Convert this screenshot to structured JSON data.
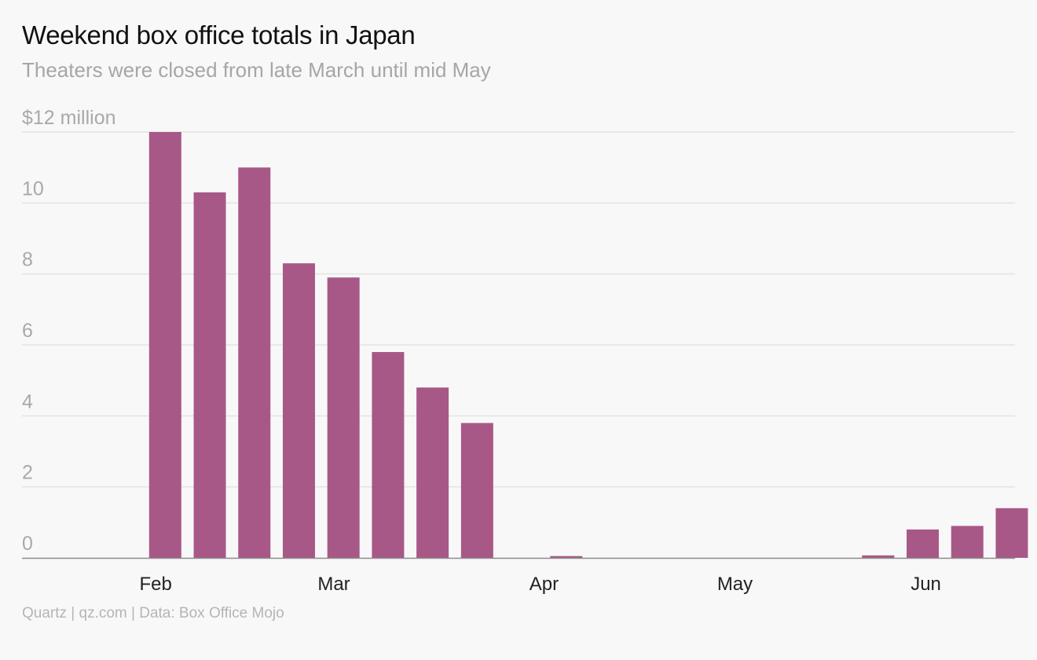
{
  "title": "Weekend box office totals in Japan",
  "subtitle": "Theaters were closed from late March until mid May",
  "footer": "Quartz | qz.com | Data: Box Office Mojo",
  "colors": {
    "bar": "#a85887",
    "grid": "#e3e3e3",
    "axis": "#8c8c8c",
    "background": "#f8f8f8"
  },
  "chart_data": {
    "type": "bar",
    "x_type": "date",
    "series": [
      {
        "x": [
          "2020-01-31",
          "2020-02-07",
          "2020-02-14",
          "2020-02-21",
          "2020-02-28",
          "2020-03-06",
          "2020-03-13",
          "2020-03-20",
          "2020-03-27",
          "2020-04-03",
          "2020-04-10",
          "2020-04-17",
          "2020-04-24",
          "2020-05-01",
          "2020-05-08",
          "2020-05-15",
          "2020-05-22",
          "2020-05-29",
          "2020-06-05",
          "2020-06-12"
        ],
        "values": [
          12.0,
          10.3,
          11.0,
          8.3,
          7.9,
          5.8,
          4.8,
          3.8,
          0,
          0.05,
          0,
          0,
          0,
          0,
          0,
          0,
          0.07,
          0.8,
          0.9,
          1.4
        ]
      }
    ],
    "xlim": [
      "2020-01-12",
      "2020-06-16"
    ],
    "ylim": [
      0,
      12
    ],
    "y_ticks": [
      {
        "value": 12,
        "label": "$12 million"
      },
      {
        "value": 10,
        "label": "10"
      },
      {
        "value": 8,
        "label": "8"
      },
      {
        "value": 6,
        "label": "6"
      },
      {
        "value": 4,
        "label": "4"
      },
      {
        "value": 2,
        "label": "2"
      },
      {
        "value": 0,
        "label": "0"
      }
    ],
    "x_ticks": [
      {
        "date": "2020-02-02",
        "label": "Feb"
      },
      {
        "date": "2020-03-01",
        "label": "Mar"
      },
      {
        "date": "2020-04-03",
        "label": "Apr"
      },
      {
        "date": "2020-05-03",
        "label": "May"
      },
      {
        "date": "2020-06-02",
        "label": "Jun"
      }
    ],
    "grid": true
  }
}
